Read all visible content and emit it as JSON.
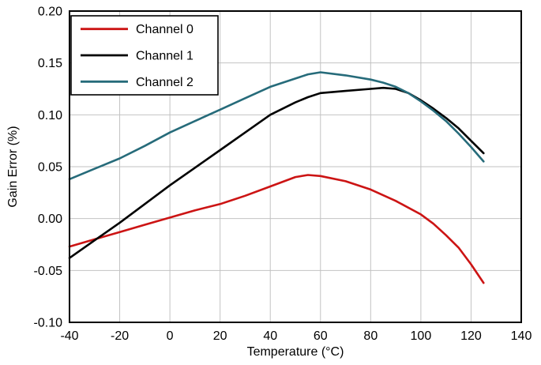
{
  "chart_data": {
    "type": "line",
    "title": "",
    "xlabel": "Temperature (°C)",
    "ylabel": "Gain Error (%)",
    "xlim": [
      -40,
      140
    ],
    "ylim": [
      -0.1,
      0.2
    ],
    "xticks": [
      -40,
      -20,
      0,
      20,
      40,
      60,
      80,
      100,
      120,
      140
    ],
    "xtick_labels": [
      "-40",
      "-20",
      "0",
      "20",
      "40",
      "60",
      "80",
      "100",
      "120",
      "140"
    ],
    "yticks": [
      -0.1,
      -0.05,
      0.0,
      0.05,
      0.1,
      0.15,
      0.2
    ],
    "ytick_labels": [
      "-0.10",
      "-0.05",
      "0.00",
      "0.05",
      "0.10",
      "0.15",
      "0.20"
    ],
    "grid": true,
    "legend_position": "top-left",
    "colors": {
      "grid": "#c2c2c2",
      "axis_border": "#000000",
      "background": "#ffffff",
      "channel0": "#cc1414",
      "channel1": "#000000",
      "channel2": "#266b7a"
    },
    "series": [
      {
        "name": "Channel 0",
        "color": "#cc1414",
        "x": [
          -40,
          -30,
          -20,
          -10,
          0,
          10,
          20,
          30,
          40,
          50,
          55,
          60,
          70,
          80,
          90,
          100,
          105,
          110,
          115,
          120,
          125
        ],
        "y": [
          -0.027,
          -0.02,
          -0.013,
          -0.006,
          0.001,
          0.008,
          0.014,
          0.022,
          0.031,
          0.04,
          0.042,
          0.041,
          0.036,
          0.028,
          0.017,
          0.004,
          -0.005,
          -0.016,
          -0.028,
          -0.044,
          -0.062
        ]
      },
      {
        "name": "Channel 1",
        "color": "#000000",
        "x": [
          -40,
          -30,
          -20,
          -10,
          0,
          10,
          20,
          30,
          40,
          50,
          55,
          60,
          70,
          80,
          85,
          90,
          95,
          100,
          105,
          110,
          115,
          120,
          125
        ],
        "y": [
          -0.038,
          -0.021,
          -0.004,
          0.014,
          0.032,
          0.049,
          0.066,
          0.083,
          0.1,
          0.112,
          0.117,
          0.121,
          0.123,
          0.125,
          0.126,
          0.125,
          0.121,
          0.114,
          0.106,
          0.097,
          0.087,
          0.075,
          0.063
        ]
      },
      {
        "name": "Channel 2",
        "color": "#266b7a",
        "x": [
          -40,
          -30,
          -20,
          -10,
          0,
          10,
          20,
          30,
          40,
          50,
          55,
          60,
          70,
          80,
          85,
          90,
          95,
          100,
          105,
          110,
          115,
          120,
          125
        ],
        "y": [
          0.038,
          0.048,
          0.058,
          0.07,
          0.083,
          0.094,
          0.105,
          0.116,
          0.127,
          0.135,
          0.139,
          0.141,
          0.138,
          0.134,
          0.131,
          0.127,
          0.121,
          0.113,
          0.104,
          0.094,
          0.082,
          0.069,
          0.055
        ]
      }
    ]
  }
}
